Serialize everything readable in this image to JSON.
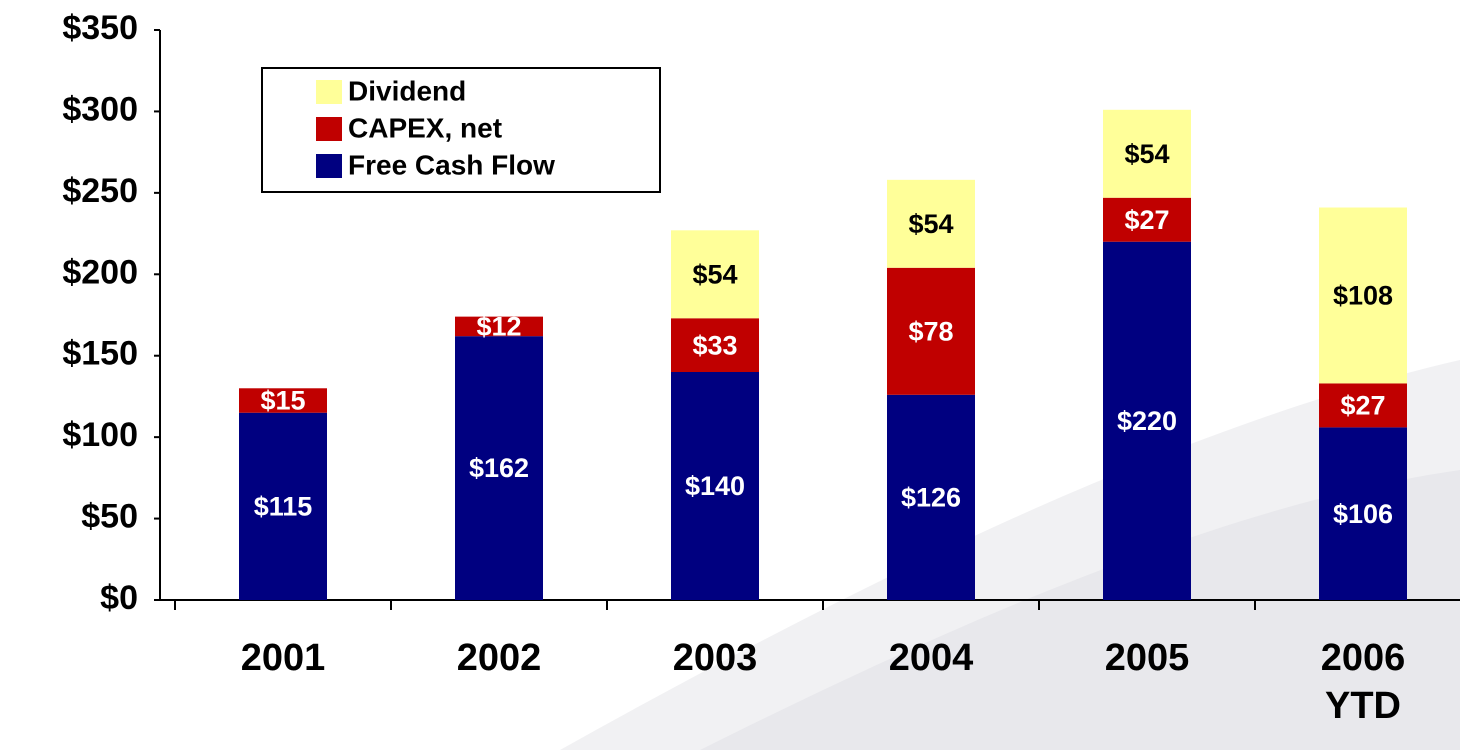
{
  "chart_data": {
    "type": "stacked_bar",
    "categories": [
      "2001",
      "2002",
      "2003",
      "2004",
      "2005",
      "2006 YTD"
    ],
    "series": [
      {
        "name": "Free Cash Flow",
        "color": "#000080",
        "label_color": "#ffffff",
        "values": [
          115,
          162,
          140,
          126,
          220,
          106
        ],
        "value_labels": [
          "$115",
          "$162",
          "$140",
          "$126",
          "$220",
          "$106"
        ]
      },
      {
        "name": "CAPEX, net",
        "color": "#c00000",
        "label_color": "#ffffff",
        "values": [
          15,
          12,
          33,
          78,
          27,
          27
        ],
        "value_labels": [
          "$15",
          "$12",
          "$33",
          "$78",
          "$27",
          "$27"
        ]
      },
      {
        "name": "Dividend",
        "color": "#ffff99",
        "label_color": "#000000",
        "values": [
          null,
          null,
          54,
          54,
          54,
          108
        ],
        "value_labels": [
          null,
          null,
          "$54",
          "$54",
          "$54",
          "$108"
        ]
      }
    ],
    "ylim": [
      0,
      350
    ],
    "yticks": [
      {
        "value": 0,
        "label": "$0"
      },
      {
        "value": 50,
        "label": "$50"
      },
      {
        "value": 100,
        "label": "$100"
      },
      {
        "value": 150,
        "label": "$150"
      },
      {
        "value": 200,
        "label": "$200"
      },
      {
        "value": 250,
        "label": "$250"
      },
      {
        "value": 300,
        "label": "$300"
      },
      {
        "value": 350,
        "label": "$350"
      }
    ],
    "legend": "upper left",
    "grid": false
  }
}
